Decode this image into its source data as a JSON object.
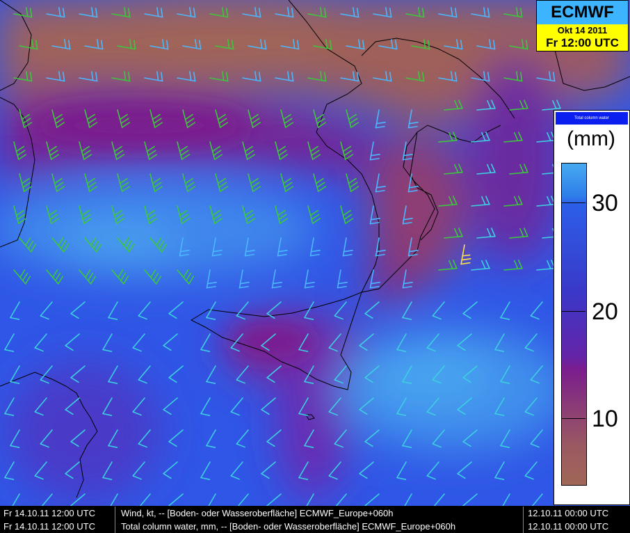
{
  "title": {
    "model": "ECMWF",
    "date": "Okt 14 2011",
    "time": "Fr 12:00 UTC"
  },
  "legend": {
    "header": "Total column water",
    "unit": "(mm)",
    "ticks": [
      {
        "label": "30",
        "value": 30
      },
      {
        "label": "20",
        "value": 20
      },
      {
        "label": "10",
        "value": 10
      }
    ],
    "colors": [
      "#46aaf0",
      "#2c5ee8",
      "#3a38c8",
      "#7a1d8e",
      "#a06656"
    ]
  },
  "info_lines": [
    {
      "valid": "Fr 14.10.11 12:00 UTC",
      "desc": "Wind, kt, -- [Boden- oder Wasseroberfläche] ECMWF_Europe+060h",
      "run": "12.10.11 00:00 UTC"
    },
    {
      "valid": "Fr 14.10.11 12:00 UTC",
      "desc": "Total column water, mm, -- [Boden- oder Wasseroberfläche] ECMWF_Europe+060h",
      "run": "12.10.11 00:00 UTC"
    }
  ]
}
